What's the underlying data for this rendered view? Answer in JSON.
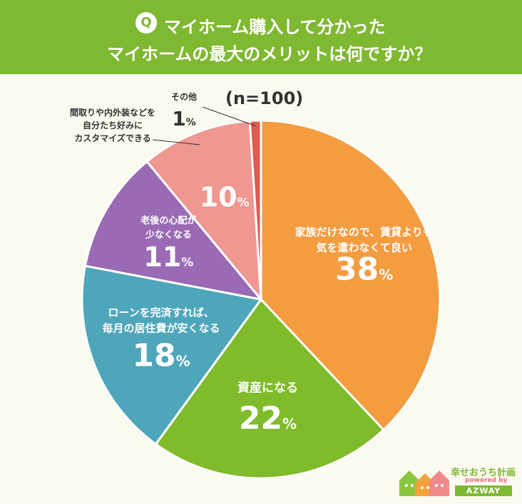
{
  "header": {
    "badge": "Q",
    "line1": "マイホーム購入して分かった",
    "line2": "マイホームの最大のメリットは何ですか？"
  },
  "sample_size": "(n=100)",
  "colors": {
    "header_bg": "#7fb831",
    "background": "#fbfaf0"
  },
  "chart_data": {
    "type": "pie",
    "title": "マイホーム購入して分かったマイホームの最大のメリットは何ですか？",
    "unit": "%",
    "slices": [
      {
        "label_lines": [
          "家族だけなので、賃貸よりも",
          "気を遣わなくて良い"
        ],
        "value": 38,
        "color": "#f39c40"
      },
      {
        "label_lines": [
          "資産になる"
        ],
        "value": 22,
        "color": "#7fbb2a"
      },
      {
        "label_lines": [
          "ローンを完済すれば、",
          "毎月の居住費が安くなる"
        ],
        "value": 18,
        "color": "#4ea6bb"
      },
      {
        "label_lines": [
          "老後の心配が",
          "少なくなる"
        ],
        "value": 11,
        "color": "#9a6bb4"
      },
      {
        "label_lines": [
          "間取りや内外装などを",
          "自分たち好みに",
          "カスタマイズできる"
        ],
        "value": 10,
        "color": "#ef9791"
      },
      {
        "label_lines": [
          "その他"
        ],
        "value": 1,
        "color": "#e05a4e"
      }
    ]
  },
  "logo": {
    "name": "幸せおうち計画",
    "sub": "powered by",
    "brand": "AZWAY"
  }
}
